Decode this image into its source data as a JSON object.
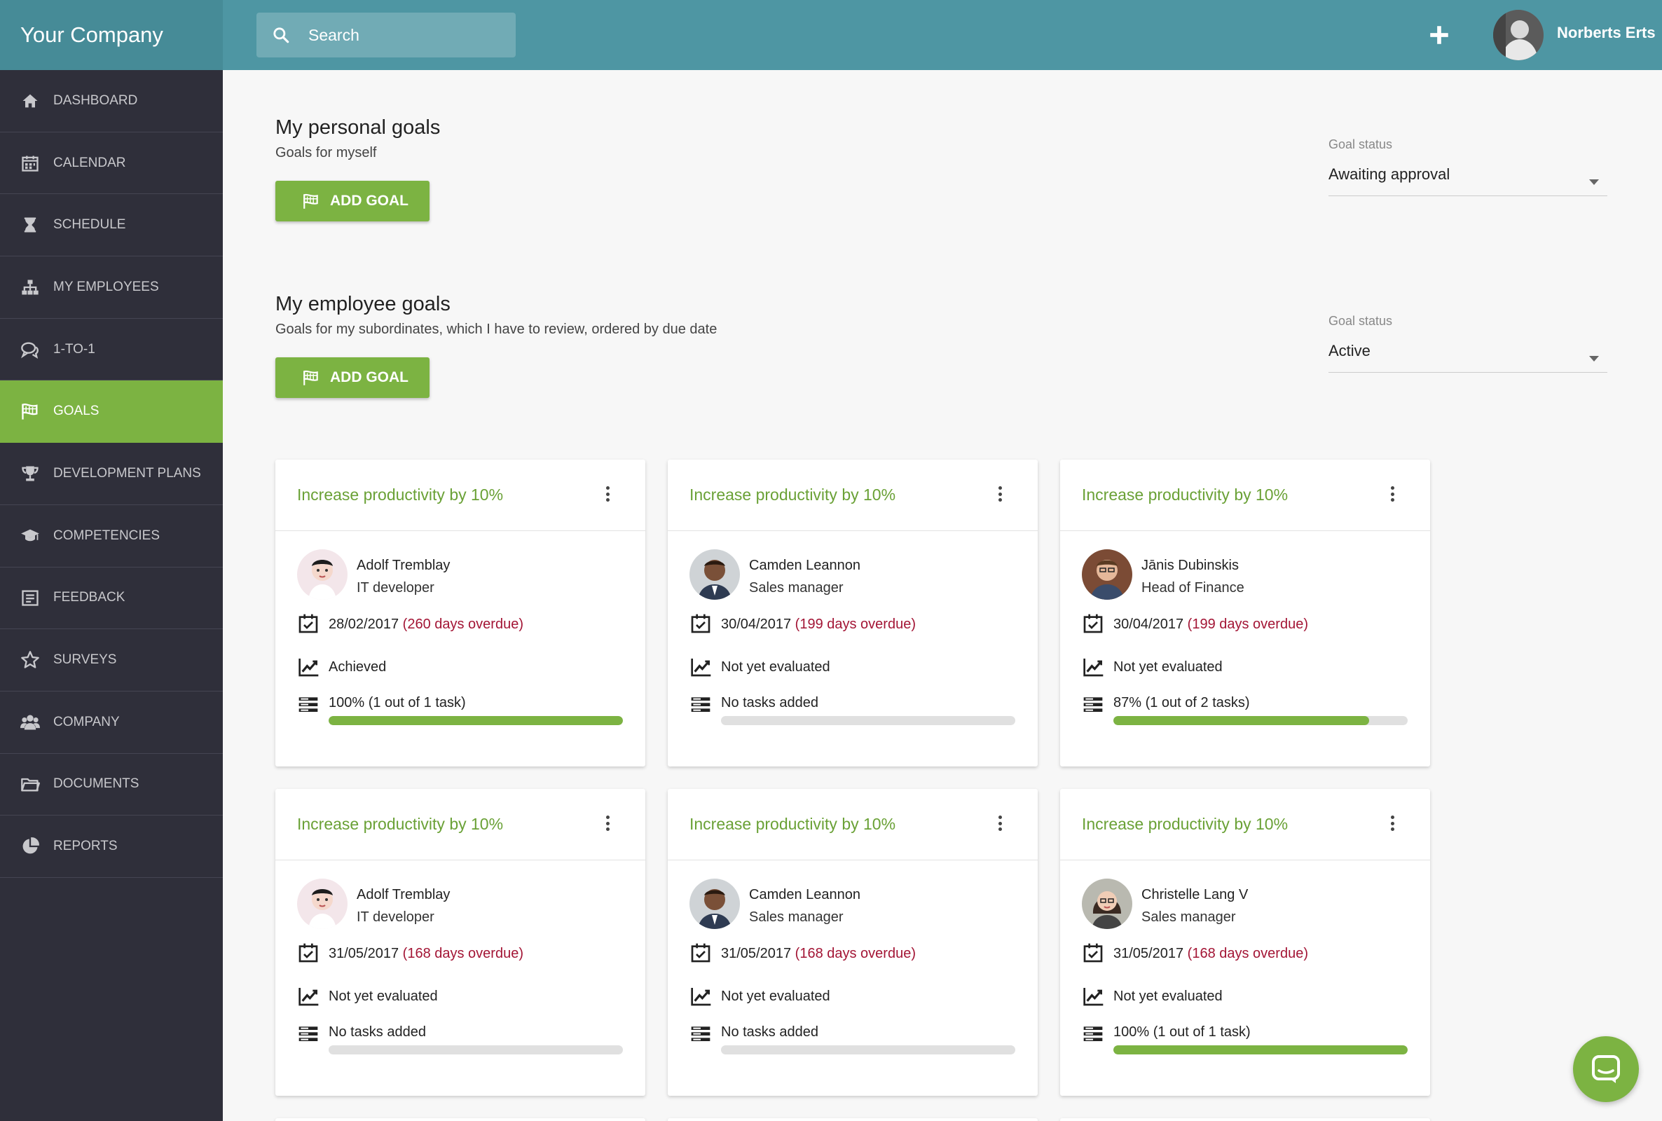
{
  "header": {
    "brand": "Your Company",
    "search_placeholder": "Search",
    "user_name": "Norberts Erts"
  },
  "sidebar": {
    "items": [
      {
        "label": "DASHBOARD",
        "icon": "home-icon"
      },
      {
        "label": "CALENDAR",
        "icon": "calendar-icon"
      },
      {
        "label": "SCHEDULE",
        "icon": "hourglass-icon"
      },
      {
        "label": "MY EMPLOYEES",
        "icon": "org-chart-icon"
      },
      {
        "label": "1-TO-1",
        "icon": "chat-bubbles-icon"
      },
      {
        "label": "GOALS",
        "icon": "flag-icon",
        "active": true
      },
      {
        "label": "DEVELOPMENT PLANS",
        "icon": "trophy-icon"
      },
      {
        "label": "COMPETENCIES",
        "icon": "graduation-cap-icon"
      },
      {
        "label": "FEEDBACK",
        "icon": "feedback-form-icon"
      },
      {
        "label": "SURVEYS",
        "icon": "star-icon"
      },
      {
        "label": "COMPANY",
        "icon": "people-icon"
      },
      {
        "label": "DOCUMENTS",
        "icon": "folder-icon"
      },
      {
        "label": "REPORTS",
        "icon": "pie-chart-icon"
      }
    ]
  },
  "personal": {
    "title": "My personal goals",
    "subtitle": "Goals for myself",
    "add_label": "ADD GOAL",
    "status_label": "Goal status",
    "status_value": "Awaiting approval"
  },
  "employee": {
    "title": "My employee goals",
    "subtitle": "Goals for my subordinates, which I have to review, ordered by due date",
    "add_label": "ADD GOAL",
    "status_label": "Goal status",
    "status_value": "Active"
  },
  "cards": [
    {
      "title": "Increase productivity by 10%",
      "name": "Adolf Tremblay",
      "role": "IT developer",
      "date": "28/02/2017",
      "overdue": "(260 days overdue)",
      "evaluation": "Achieved",
      "tasks": "100% (1 out of 1 task)",
      "progress": 100
    },
    {
      "title": "Increase productivity by 10%",
      "name": "Camden Leannon",
      "role": "Sales manager",
      "date": "30/04/2017",
      "overdue": "(199 days overdue)",
      "evaluation": "Not yet evaluated",
      "tasks": "No tasks added",
      "progress": 0
    },
    {
      "title": "Increase productivity by 10%",
      "name": "Jānis Dubinskis",
      "role": "Head of Finance",
      "date": "30/04/2017",
      "overdue": "(199 days overdue)",
      "evaluation": "Not yet evaluated",
      "tasks": "87% (1 out of 2 tasks)",
      "progress": 87
    },
    {
      "title": "Increase productivity by 10%",
      "name": "Adolf Tremblay",
      "role": "IT developer",
      "date": "31/05/2017",
      "overdue": "(168 days overdue)",
      "evaluation": "Not yet evaluated",
      "tasks": "No tasks added",
      "progress": 0
    },
    {
      "title": "Increase productivity by 10%",
      "name": "Camden Leannon",
      "role": "Sales manager",
      "date": "31/05/2017",
      "overdue": "(168 days overdue)",
      "evaluation": "Not yet evaluated",
      "tasks": "No tasks added",
      "progress": 0
    },
    {
      "title": "Increase productivity by 10%",
      "name": "Christelle Lang V",
      "role": "Sales manager",
      "date": "31/05/2017",
      "overdue": "(168 days overdue)",
      "evaluation": "Not yet evaluated",
      "tasks": "100% (1 out of 1 task)",
      "progress": 100
    }
  ],
  "colors": {
    "topbar": "#4e96a3",
    "sidebar": "#2f2f3a",
    "accent": "#7cb342",
    "overdue": "#a31535",
    "card_title": "#6aa136"
  }
}
